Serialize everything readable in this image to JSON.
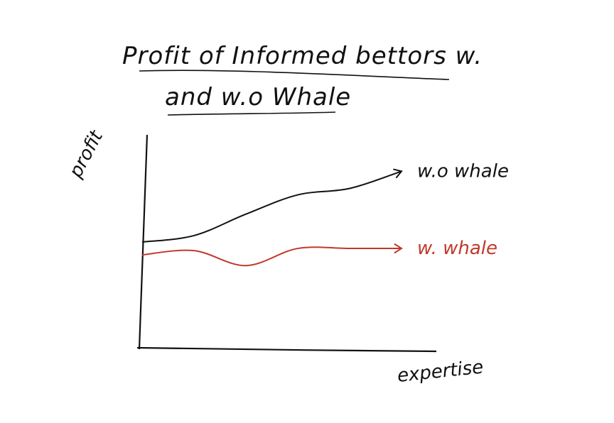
{
  "chart_data": {
    "type": "line",
    "title_line1": "Profit of Informed bettors w.",
    "title_line2": "and w.o Whale",
    "xlabel": "expertise",
    "ylabel": "profit",
    "grid": false,
    "legend": "inline labels at line ends",
    "x": [
      0,
      0.2,
      0.4,
      0.6,
      0.8,
      1.0
    ],
    "series": [
      {
        "name": "w.o whale",
        "color": "#111111",
        "values": [
          0.5,
          0.53,
          0.63,
          0.72,
          0.75,
          0.83
        ]
      },
      {
        "name": "w. whale",
        "color": "#c0392b",
        "values": [
          0.44,
          0.46,
          0.39,
          0.47,
          0.47,
          0.47
        ]
      }
    ],
    "ylim": [
      0,
      1
    ],
    "xlim": [
      0,
      1
    ]
  }
}
